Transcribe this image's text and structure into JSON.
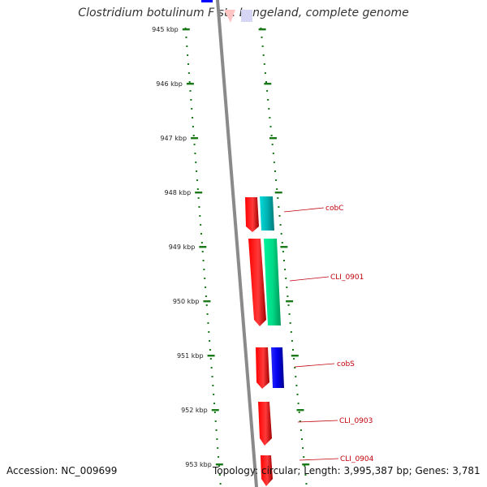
{
  "title": "Clostridium botulinum F str. Langeland, complete genome",
  "accession": "Accession: NC_009699",
  "summary": "Topology: circular; Length: 3,995,387 bp; Genes: 3,781",
  "ruler_labels": [
    "945 kbp",
    "946 kbp",
    "947 kbp",
    "948 kbp",
    "949 kbp",
    "950 kbp",
    "951 kbp",
    "952 kbp",
    "953 kbp"
  ],
  "gene_labels": [
    "cobC",
    "CLI_0901",
    "cobS",
    "CLI_0903",
    "CLI_0904"
  ],
  "colors": {
    "forward_gene": "#ff0000",
    "ruler_tick": "#1a7a1a",
    "backbone": "#8a8a8a",
    "cyan_feature": "#00c8c8",
    "green_feature": "#00e690",
    "blue_feature": "#0000ff",
    "label": "#c0000a"
  }
}
